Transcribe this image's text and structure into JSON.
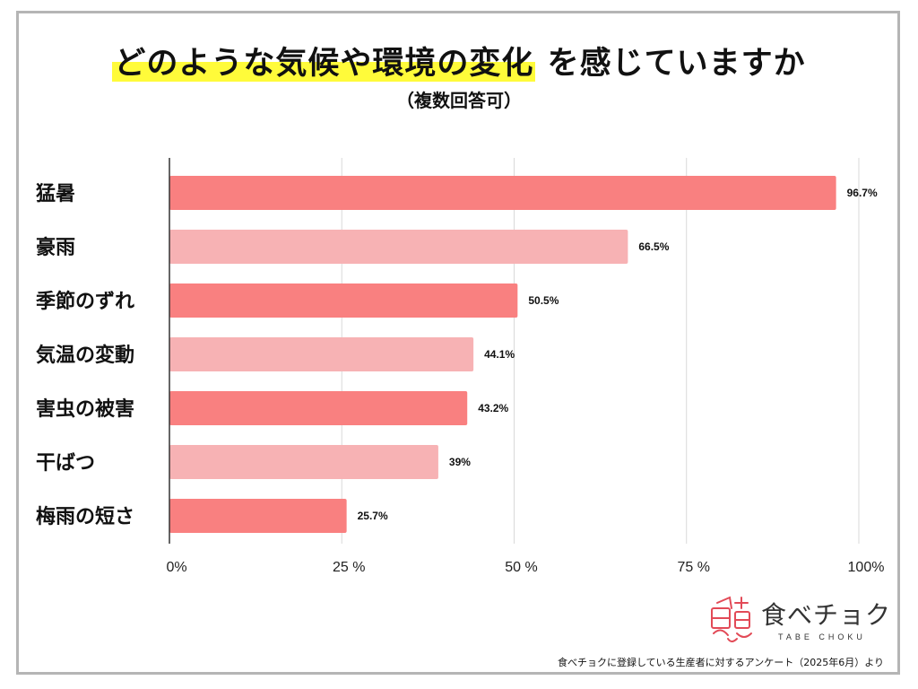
{
  "title": {
    "highlighted": "どのような気候や環境の変化",
    "rest": "を感じていますか",
    "subtitle": "（複数回答可）"
  },
  "chart_data": {
    "type": "bar",
    "orientation": "horizontal",
    "title": "どのような気候や環境の変化 を感じていますか",
    "subtitle": "（複数回答可）",
    "categories": [
      "猛暑",
      "豪雨",
      "季節のずれ",
      "気温の変動",
      "害虫の被害",
      "干ばつ",
      "梅雨の短さ"
    ],
    "values": [
      96.7,
      66.5,
      50.5,
      44.1,
      43.2,
      39,
      25.7
    ],
    "value_labels": [
      "96.7%",
      "66.5%",
      "50.5%",
      "44.1%",
      "43.2%",
      "39%",
      "25.7%"
    ],
    "bar_colors": [
      "#f98080",
      "#f7b2b4",
      "#f98080",
      "#f7b2b4",
      "#f98080",
      "#f7b2b4",
      "#f98080"
    ],
    "xlim": [
      0,
      100
    ],
    "x_ticks": [
      0,
      25,
      50,
      75,
      100
    ],
    "x_tick_labels": [
      "0%",
      "25 %",
      "50 %",
      "75 %",
      "100%"
    ],
    "grid": true,
    "legend": "none"
  },
  "logo": {
    "name": "食べチョク",
    "sub": "TABE CHOKU"
  },
  "footnote": "食べチョクに登録している生産者に対するアンケート（2025年6月）より",
  "colors": {
    "highlight": "#fffb3a",
    "frame": "#b5b5b5",
    "logo_accent": "#e24a57"
  }
}
